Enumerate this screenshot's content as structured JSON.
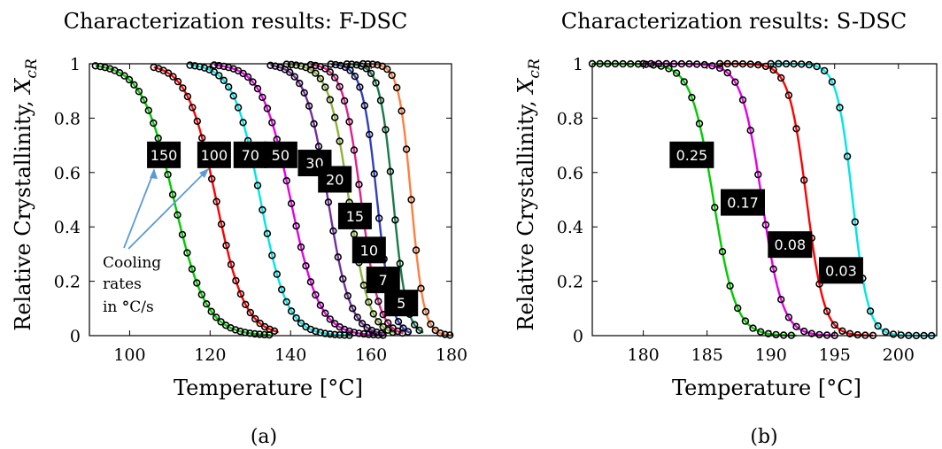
{
  "chart_data": [
    {
      "type": "line",
      "title": "Characterization results: F-DSC",
      "xlabel": "Temperature [°C]",
      "ylabel": "Relative Crystallinity, ",
      "ylabel_symbol": "X",
      "ylabel_subscript": "cR",
      "caption": "(a)",
      "xlim": [
        90,
        180
      ],
      "ylim": [
        0,
        1
      ],
      "xticks": [
        100,
        120,
        140,
        160,
        180
      ],
      "yticks": [
        0,
        0.2,
        0.4,
        0.6,
        0.8,
        1
      ],
      "ytick_labels": [
        "0",
        "0.2",
        "0.4",
        "0.6",
        "0.8",
        "1"
      ],
      "marker": "circle",
      "annotation": {
        "lines": [
          "Cooling",
          "rates",
          "in "
        ],
        "degree_symbol": "°",
        "unit": "C/s",
        "arrow_color": "#5b9bd5"
      },
      "series": [
        {
          "label": "150",
          "color": "#00cc00",
          "x0": 91.5,
          "tmid": 111,
          "k": 0.25,
          "tend": 135,
          "label_pos": [
            108.5,
            0.665
          ]
        },
        {
          "label": "100",
          "color": "#ff0000",
          "x0": 106,
          "tmid": 121.5,
          "k": 0.28,
          "tend": 137,
          "label_pos": [
            121,
            0.665
          ]
        },
        {
          "label": "70",
          "color": "#00e5e5",
          "x0": 115,
          "tmid": 132.5,
          "k": 0.3,
          "tend": 155,
          "label_pos": [
            130,
            0.665
          ]
        },
        {
          "label": "50",
          "color": "#e600e6",
          "x0": 121,
          "tmid": 140,
          "k": 0.28,
          "tend": 163,
          "label_pos": [
            137.5,
            0.665
          ]
        },
        {
          "label": "30",
          "color": "#7030a0",
          "x0": 135,
          "tmid": 149.3,
          "k": 0.36,
          "tend": 163,
          "label_pos": [
            146,
            0.635
          ]
        },
        {
          "label": "20",
          "color": "#8db33a",
          "x0": 139,
          "tmid": 154.5,
          "k": 0.4,
          "tend": 166,
          "label_pos": [
            151,
            0.575
          ]
        },
        {
          "label": "15",
          "color": "#e0218a",
          "x0": 145,
          "tmid": 157.5,
          "k": 0.45,
          "tend": 168,
          "label_pos": [
            156,
            0.44
          ]
        },
        {
          "label": "10",
          "color": "#3040c0",
          "x0": 150,
          "tmid": 161.5,
          "k": 0.55,
          "tend": 170,
          "label_pos": [
            159.5,
            0.315
          ]
        },
        {
          "label": "7",
          "color": "#1a7a4a",
          "x0": 154,
          "tmid": 165.5,
          "k": 0.6,
          "tend": 173,
          "label_pos": [
            163,
            0.205
          ]
        },
        {
          "label": "5",
          "color": "#ff7f3f",
          "x0": 158,
          "tmid": 170,
          "k": 0.65,
          "tend": 180,
          "label_pos": [
            167.5,
            0.12
          ]
        }
      ]
    },
    {
      "type": "line",
      "title": "Characterization results: S-DSC",
      "xlabel": "Temperature [°C]",
      "ylabel": "Relative Crystallinity, ",
      "ylabel_symbol": "X",
      "ylabel_subscript": "cR",
      "caption": "(b)",
      "xlim": [
        176,
        203
      ],
      "ylim": [
        0,
        1
      ],
      "xticks": [
        180,
        185,
        190,
        195,
        200
      ],
      "yticks": [
        0,
        0.2,
        0.4,
        0.6,
        0.8,
        1
      ],
      "ytick_labels": [
        "0",
        "0.2",
        "0.4",
        "0.6",
        "0.8",
        "1"
      ],
      "marker": "circle",
      "series": [
        {
          "label": "0.25",
          "color": "#00cc00",
          "x0": 176,
          "tmid": 185.5,
          "k": 1.15,
          "tend": 192,
          "label_pos": [
            183.8,
            0.665
          ]
        },
        {
          "label": "0.17",
          "color": "#e600e6",
          "x0": 180,
          "tmid": 189.3,
          "k": 1.25,
          "tend": 195,
          "label_pos": [
            187.8,
            0.49
          ]
        },
        {
          "label": "0.08",
          "color": "#ff0000",
          "x0": 186,
          "tmid": 192.8,
          "k": 1.45,
          "tend": 198,
          "label_pos": [
            191.5,
            0.335
          ]
        },
        {
          "label": "0.03",
          "color": "#00e5e5",
          "x0": 190,
          "tmid": 196.4,
          "k": 1.65,
          "tend": 203,
          "label_pos": [
            195.5,
            0.24
          ]
        }
      ]
    }
  ]
}
